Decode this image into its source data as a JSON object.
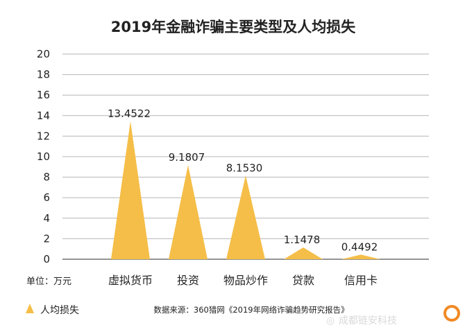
{
  "chart_data": {
    "type": "area",
    "title": "2019年金融诈骗主要类型及人均损失",
    "unit_label": "单位：万元",
    "categories": [
      "虚拟货币",
      "投资",
      "物品炒作",
      "贷款",
      "信用卡"
    ],
    "series": [
      {
        "name": "人均损失",
        "values": [
          13.4522,
          9.1807,
          8.153,
          1.1478,
          0.4492
        ],
        "labels": [
          "13.4522",
          "9.1807",
          "8.1530",
          "1.1478",
          "0.4492"
        ]
      }
    ],
    "ylim": [
      0,
      20
    ],
    "yticks": [
      "0",
      "2",
      "4",
      "6",
      "8",
      "10",
      "12",
      "14",
      "16",
      "18",
      "20"
    ],
    "grid": true,
    "legend_position": "bottom-left",
    "source": "数据来源：360猎网《2019年网络诈骗趋势研究报告》",
    "colors": {
      "bar": "#F5BE48",
      "grid": "#b5b5b5",
      "axis": "#555555"
    }
  },
  "watermark": {
    "text": "成都链安科技",
    "ring_color": "#F08A24"
  }
}
